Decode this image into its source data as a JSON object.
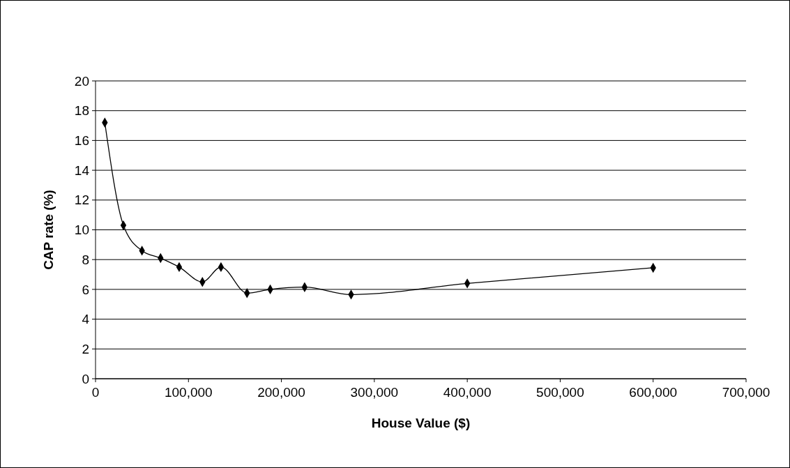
{
  "chart_data": {
    "type": "line",
    "xlabel": "House Value ($)",
    "ylabel": "CAP rate (%)",
    "x": [
      10000,
      30000,
      50000,
      70000,
      90000,
      115000,
      135000,
      163000,
      188000,
      225000,
      275000,
      400000,
      600000
    ],
    "series": [
      {
        "color": "#000000",
        "values": [
          17.2,
          10.3,
          8.6,
          8.1,
          7.5,
          6.5,
          7.5,
          5.75,
          6.0,
          6.15,
          5.65,
          6.4,
          7.45
        ]
      }
    ],
    "xlim": [
      0,
      700000
    ],
    "xticks": [
      0,
      {
        "value": 100000,
        "label": "100,000"
      },
      {
        "value": 200000,
        "label": "200,000"
      },
      {
        "value": 300000,
        "label": "300,000"
      },
      {
        "value": 400000,
        "label": "400,000"
      },
      {
        "value": 500000,
        "label": "500,000"
      },
      {
        "value": 600000,
        "label": "600,000"
      },
      {
        "value": 700000,
        "label": "700,000"
      }
    ],
    "ylim": [
      0,
      20
    ],
    "yticks": [
      0,
      2,
      4,
      6,
      8,
      10,
      12,
      14,
      16,
      18,
      20
    ],
    "grid": "y",
    "marker": "diamond",
    "line_style": "solid"
  }
}
